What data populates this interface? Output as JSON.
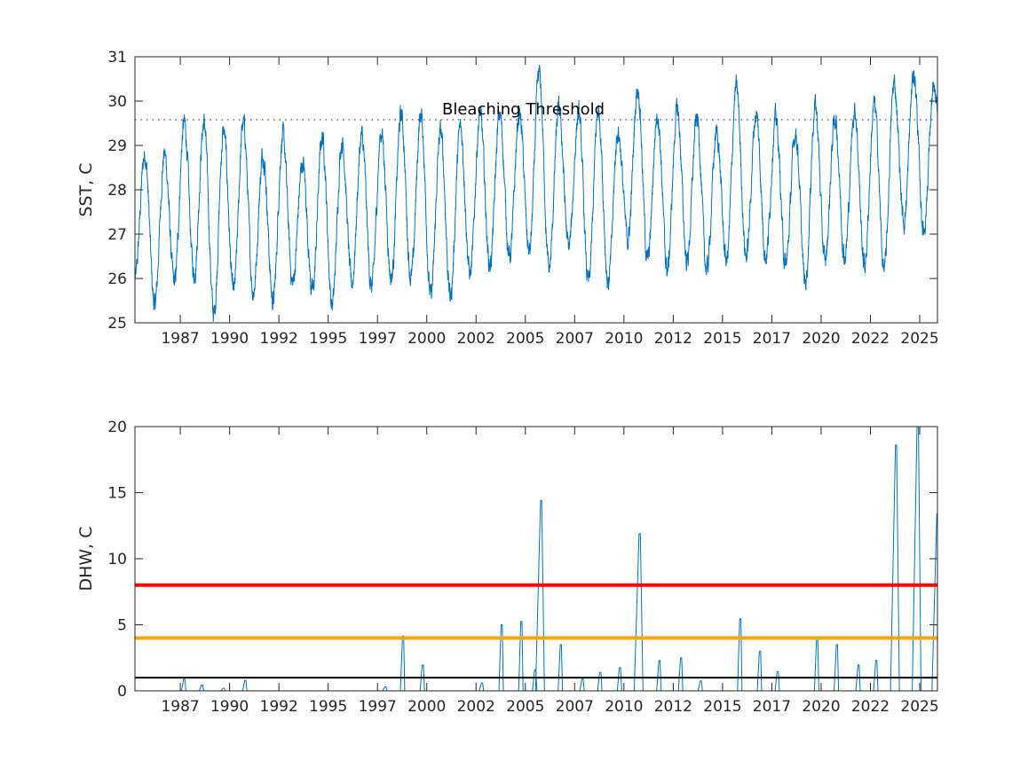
{
  "chart_data": [
    {
      "type": "line",
      "ylabel": "SST, C",
      "xlabel": "",
      "xlim": [
        1985.2,
        2025.9
      ],
      "ylim": [
        25,
        31
      ],
      "yticks": [
        25,
        26,
        27,
        28,
        29,
        30,
        31
      ],
      "xticks": [
        1987.5,
        1990,
        1992.5,
        1995,
        1997.5,
        2000,
        2002.5,
        2005,
        2007.5,
        2010,
        2012.5,
        2015,
        2017.5,
        2020,
        2022.5,
        2025
      ],
      "xtick_labels": [
        "1987",
        "1990",
        "1992",
        "1995",
        "1997",
        "2000",
        "2002",
        "2005",
        "2007",
        "2010",
        "2012",
        "2015",
        "2017",
        "2020",
        "2022",
        "2025"
      ],
      "grid": false,
      "series_color": "#0072BD",
      "threshold": {
        "label": "Bleaching Threshold",
        "value": 29.58,
        "style": "dotted",
        "color": "#0000FF"
      },
      "annual_peaks_troughs": [
        [
          1985,
          28.8,
          25.4
        ],
        [
          1986,
          28.8,
          25.9
        ],
        [
          1987,
          29.5,
          26.1
        ],
        [
          1988,
          29.5,
          25.2
        ],
        [
          1989,
          29.3,
          25.7
        ],
        [
          1990,
          29.5,
          25.7
        ],
        [
          1991,
          28.8,
          25.5
        ],
        [
          1992,
          29.2,
          25.9
        ],
        [
          1993,
          28.6,
          25.7
        ],
        [
          1994,
          29.2,
          25.4
        ],
        [
          1995,
          29.1,
          25.9
        ],
        [
          1996,
          29.2,
          25.8
        ],
        [
          1997,
          29.3,
          26.0
        ],
        [
          1998,
          29.7,
          26.0
        ],
        [
          1999,
          29.7,
          25.6
        ],
        [
          2000,
          29.3,
          25.6
        ],
        [
          2001,
          29.4,
          26.1
        ],
        [
          2002,
          29.7,
          26.3
        ],
        [
          2003,
          29.7,
          26.5
        ],
        [
          2004,
          29.7,
          26.6
        ],
        [
          2005,
          30.6,
          26.2
        ],
        [
          2006,
          29.8,
          26.7
        ],
        [
          2007,
          29.7,
          25.9
        ],
        [
          2008,
          29.8,
          25.9
        ],
        [
          2009,
          29.3,
          26.9
        ],
        [
          2010,
          30.3,
          26.4
        ],
        [
          2011,
          29.7,
          26.2
        ],
        [
          2012,
          29.8,
          26.4
        ],
        [
          2013,
          29.6,
          26.2
        ],
        [
          2014,
          29.3,
          26.4
        ],
        [
          2015,
          30.3,
          26.5
        ],
        [
          2016,
          29.7,
          26.5
        ],
        [
          2017,
          29.6,
          26.3
        ],
        [
          2018,
          29.3,
          25.9
        ],
        [
          2019,
          29.9,
          26.4
        ],
        [
          2020,
          29.6,
          26.5
        ],
        [
          2021,
          29.8,
          26.3
        ],
        [
          2022,
          29.9,
          26.2
        ],
        [
          2023,
          30.4,
          27.3
        ],
        [
          2024,
          30.6,
          27.1
        ],
        [
          2025,
          30.2,
          28.5
        ]
      ]
    },
    {
      "type": "line",
      "ylabel": "DHW, C",
      "xlabel": "",
      "xlim": [
        1985.2,
        2025.9
      ],
      "ylim": [
        0,
        20
      ],
      "yticks": [
        0,
        5,
        10,
        15,
        20
      ],
      "xticks": [
        1987.5,
        1990,
        1992.5,
        1995,
        1997.5,
        2000,
        2002.5,
        2005,
        2007.5,
        2010,
        2012.5,
        2015,
        2017.5,
        2020,
        2022.5,
        2025
      ],
      "xtick_labels": [
        "1987",
        "1990",
        "1992",
        "1995",
        "1997",
        "2000",
        "2002",
        "2005",
        "2007",
        "2010",
        "2012",
        "2015",
        "2017",
        "2020",
        "2022",
        "2025"
      ],
      "grid": false,
      "series_color": "#0072BD",
      "reference_lines": [
        {
          "value": 1,
          "color": "#000000"
        },
        {
          "value": 4,
          "color": "#FFA500"
        },
        {
          "value": 8,
          "color": "#FF0000"
        }
      ],
      "event_peaks": [
        [
          1987.7,
          0.9
        ],
        [
          1988.6,
          0.45
        ],
        [
          1989.7,
          0.2
        ],
        [
          1990.8,
          0.8
        ],
        [
          1997.9,
          0.3
        ],
        [
          1998.8,
          4.15
        ],
        [
          1999.8,
          1.95
        ],
        [
          2002.8,
          0.6
        ],
        [
          2003.8,
          5.0
        ],
        [
          2004.8,
          5.25
        ],
        [
          2005.5,
          1.6
        ],
        [
          2005.8,
          14.4
        ],
        [
          2006.8,
          3.5
        ],
        [
          2007.9,
          0.9
        ],
        [
          2008.8,
          1.4
        ],
        [
          2009.8,
          1.75
        ],
        [
          2010.8,
          11.9
        ],
        [
          2011.8,
          2.3
        ],
        [
          2012.9,
          2.5
        ],
        [
          2013.9,
          0.75
        ],
        [
          2015.9,
          5.45
        ],
        [
          2016.9,
          3.0
        ],
        [
          2017.8,
          1.45
        ],
        [
          2019.8,
          3.9
        ],
        [
          2020.8,
          3.5
        ],
        [
          2021.9,
          1.95
        ],
        [
          2022.8,
          2.3
        ],
        [
          2023.8,
          18.6
        ],
        [
          2024.9,
          20.5
        ],
        [
          2025.9,
          13.4
        ]
      ]
    }
  ]
}
